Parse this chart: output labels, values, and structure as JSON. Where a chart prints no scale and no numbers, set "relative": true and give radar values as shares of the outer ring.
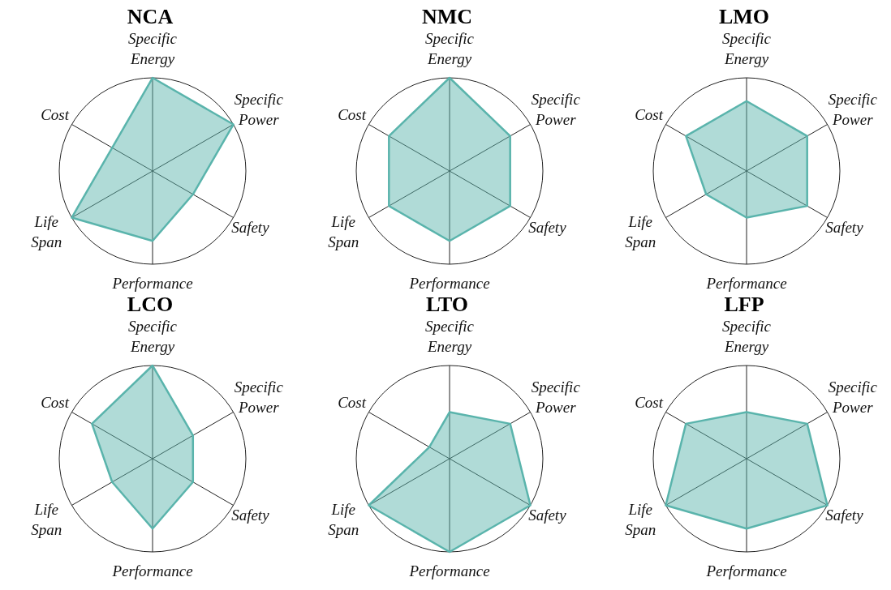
{
  "chart_data": [
    {
      "type": "radar",
      "title": "NCA",
      "categories": [
        "Specific Energy",
        "Specific Power",
        "Safety",
        "Performance",
        "Life Span",
        "Cost"
      ],
      "relative": true,
      "grid": true,
      "series": [
        {
          "color": "#5ab4ac",
          "values": [
            1,
            1,
            0.5,
            0.75,
            1,
            0.5
          ]
        }
      ]
    },
    {
      "type": "radar",
      "title": "NMC",
      "categories": [
        "Specific Energy",
        "Specific Power",
        "Safety",
        "Performance",
        "Life Span",
        "Cost"
      ],
      "relative": true,
      "grid": true,
      "series": [
        {
          "color": "#5ab4ac",
          "values": [
            1,
            0.75,
            0.75,
            0.75,
            0.75,
            0.75
          ]
        }
      ]
    },
    {
      "type": "radar",
      "title": "LMO",
      "categories": [
        "Specific Energy",
        "Specific Power",
        "Safety",
        "Performance",
        "Life Span",
        "Cost"
      ],
      "relative": true,
      "grid": true,
      "series": [
        {
          "color": "#5ab4ac",
          "values": [
            0.75,
            0.75,
            0.75,
            0.5,
            0.5,
            0.75
          ]
        }
      ]
    },
    {
      "type": "radar",
      "title": "LCO",
      "categories": [
        "Specific Energy",
        "Specific Power",
        "Safety",
        "Performance",
        "Life Span",
        "Cost"
      ],
      "relative": true,
      "grid": true,
      "series": [
        {
          "color": "#5ab4ac",
          "values": [
            1,
            0.5,
            0.5,
            0.75,
            0.5,
            0.75
          ]
        }
      ]
    },
    {
      "type": "radar",
      "title": "LTO",
      "categories": [
        "Specific Energy",
        "Specific Power",
        "Safety",
        "Performance",
        "Life Span",
        "Cost"
      ],
      "relative": true,
      "grid": true,
      "series": [
        {
          "color": "#5ab4ac",
          "values": [
            0.5,
            0.75,
            1,
            1,
            1,
            0.25
          ]
        }
      ]
    },
    {
      "type": "radar",
      "title": "LFP",
      "categories": [
        "Specific Energy",
        "Specific Power",
        "Safety",
        "Performance",
        "Life Span",
        "Cost"
      ],
      "relative": true,
      "grid": true,
      "series": [
        {
          "color": "#5ab4ac",
          "values": [
            0.5,
            0.75,
            1,
            0.75,
            1,
            0.75
          ]
        }
      ]
    }
  ]
}
